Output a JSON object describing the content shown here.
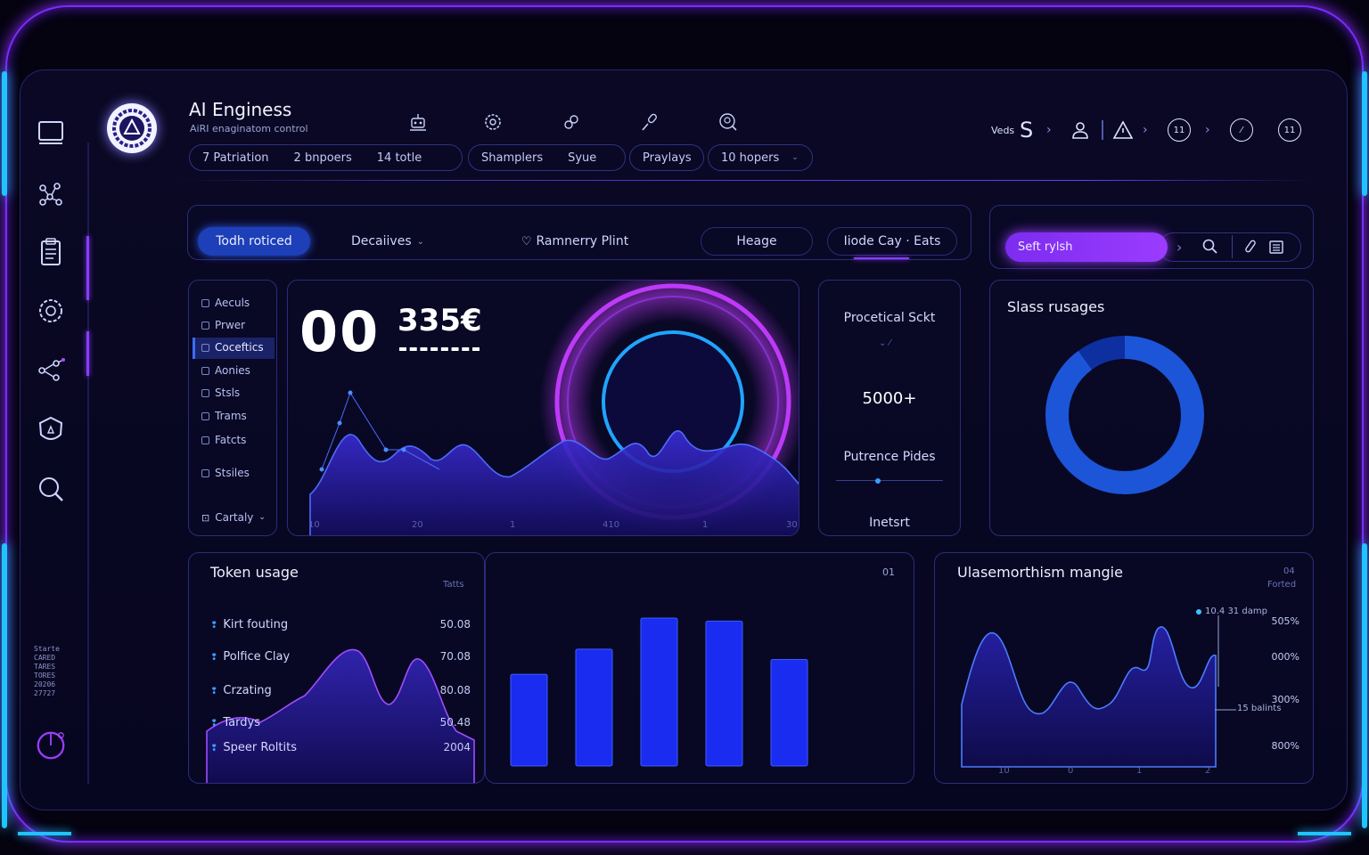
{
  "app": {
    "title": "AI Enginess",
    "subtitle": "AiRI enaginatom control"
  },
  "header_pills": [
    {
      "items": [
        "7 Patriation",
        "2 bnpoers",
        "14 totle"
      ]
    },
    {
      "items": [
        "Shamplers",
        "Syue"
      ]
    },
    {
      "items": [
        "Praylays"
      ]
    },
    {
      "items": [
        "10 hopers"
      ]
    }
  ],
  "top_right": {
    "user_label": "Veds",
    "user_initial": "S",
    "circle_1": "11",
    "circle_3": "11"
  },
  "toolbar": {
    "primary": "Todh roticed",
    "dropdown": "Decaiives",
    "search_like": "Ramnerry Plint",
    "heage": "Heage",
    "mode": "Iiode Cay · Eats"
  },
  "right_toolbar": {
    "search_placeholder": "Seft rylsh"
  },
  "left_list": {
    "items": [
      "Aeculs",
      "Prwer",
      "Coceftics",
      "Aonies",
      "Stsls",
      "Trams",
      "Fatcts",
      "Stsiles"
    ],
    "active_index": 2,
    "footer": "Cartaly"
  },
  "main_chart": {
    "big_number": "00",
    "big_value": "335€",
    "x_ticks": [
      "10",
      "20",
      "1",
      "410",
      "1",
      "30"
    ],
    "colors": {
      "area": "#2a1fa8",
      "line": "#4c6cff",
      "ring": "#c43cff",
      "inner_ring": "#1fa4ff"
    }
  },
  "stats_panel": {
    "title": "Procetical Sckt",
    "value": "5000+",
    "label": "Putrence Pides",
    "footer": "Inetsrt"
  },
  "donut": {
    "title": "Slass rusages",
    "segments": [
      {
        "fraction": 0.9,
        "color": "#1c55d8"
      },
      {
        "fraction": 0.1,
        "color": "#0e2fa0"
      }
    ]
  },
  "token_usage": {
    "title": "Token usage",
    "col_label": "Tatts",
    "corner_label": "01",
    "rows": [
      {
        "name": "Kirt fouting",
        "value": "50.08"
      },
      {
        "name": "Polfice Clay",
        "value": "70.08"
      },
      {
        "name": "Crzating",
        "value": "80.08"
      },
      {
        "name": "Tardys",
        "value": "50.48"
      },
      {
        "name": "Speer Roltits",
        "value": "2004"
      }
    ]
  },
  "chart_data": [
    {
      "type": "bar",
      "categories": [
        "",
        "",
        "",
        "",
        ""
      ],
      "values": [
        62,
        79,
        100,
        98,
        72
      ],
      "ylim": [
        0,
        100
      ]
    },
    {
      "type": "line",
      "title": "Ulasemorthism mangie",
      "corner_top": "04",
      "corner_sub": "Forted",
      "legend": "10.4 31 damp",
      "marker_label": "15 balints",
      "y_labels": [
        "505%",
        "000%",
        "300%",
        "800%"
      ],
      "x_ticks": [
        "10",
        "0",
        "1",
        "2"
      ]
    }
  ],
  "sidebar_footer": [
    "Starte",
    "CARED",
    "TARES",
    "TORES",
    "20206",
    "27727"
  ]
}
